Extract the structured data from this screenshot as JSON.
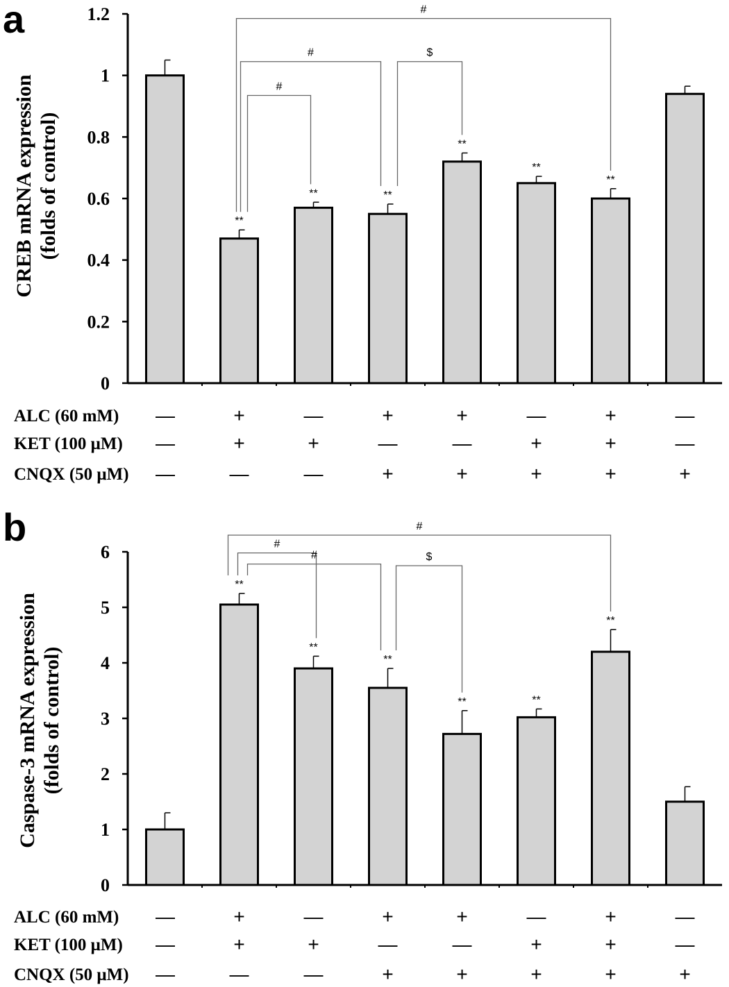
{
  "charts": {
    "a": {
      "letter": "a",
      "chart_data": {
        "type": "bar",
        "ylabel_line1": "CREB mRNA expression",
        "ylabel_line2": "(folds of control)",
        "ylim": [
          0,
          1.2
        ],
        "yticks": [
          0,
          0.2,
          0.4,
          0.6,
          0.8,
          1,
          1.2
        ],
        "ytick_labels": [
          "0",
          "0.2",
          "0.4",
          "0.6",
          "0.8",
          "1",
          "1.2"
        ],
        "values": [
          1.0,
          0.47,
          0.57,
          0.55,
          0.72,
          0.65,
          0.6,
          0.94
        ],
        "errors": [
          0.05,
          0.028,
          0.018,
          0.032,
          0.028,
          0.022,
          0.032,
          0.025
        ],
        "significance": [
          "",
          "**",
          "**",
          "**",
          "**",
          "**",
          "**",
          ""
        ],
        "comparisons": [
          {
            "from": 1,
            "to": 6,
            "label": "#",
            "level": 1.185
          },
          {
            "from": 1,
            "to": 3,
            "label": "#",
            "level": 1.045
          },
          {
            "from": 3,
            "to": 4,
            "label": "$",
            "level": 1.045
          },
          {
            "from": 1,
            "to": 2,
            "label": "#",
            "level": 0.935
          }
        ],
        "conditions": [
          {
            "label": "ALC (60 mM)",
            "marks": [
              "—",
              "+",
              "—",
              "+",
              "+",
              "—",
              "+",
              "—"
            ]
          },
          {
            "label": "KET (100 μM)",
            "marks": [
              "—",
              "+",
              "+",
              "—",
              "—",
              "+",
              "+",
              "—"
            ]
          },
          {
            "label": "CNQX (50 μM)",
            "marks": [
              "—",
              "—",
              "—",
              "+",
              "+",
              "+",
              "+",
              "+"
            ]
          }
        ]
      }
    },
    "b": {
      "letter": "b",
      "chart_data": {
        "type": "bar",
        "ylabel_line1": "Caspase-3 mRNA expression",
        "ylabel_line2": "(folds of control)",
        "ylim": [
          0,
          6
        ],
        "yticks": [
          0,
          1,
          2,
          3,
          4,
          5,
          6
        ],
        "ytick_labels": [
          "0",
          "1",
          "2",
          "3",
          "4",
          "5",
          "6"
        ],
        "values": [
          1.0,
          5.05,
          3.9,
          3.55,
          2.72,
          3.02,
          4.2,
          1.5
        ],
        "errors": [
          0.3,
          0.2,
          0.22,
          0.35,
          0.42,
          0.15,
          0.4,
          0.27
        ],
        "significance": [
          "",
          "**",
          "**",
          "**",
          "**",
          "**",
          "**",
          ""
        ],
        "comparisons": [
          {
            "from": 1,
            "to": 6,
            "label": "#",
            "level": 6.3
          },
          {
            "from": 1,
            "to": 2,
            "label": "#",
            "level": 5.98
          },
          {
            "from": 1,
            "to": 3,
            "label": "#",
            "level": 5.78
          },
          {
            "from": 3,
            "to": 4,
            "label": "$",
            "level": 5.75
          }
        ],
        "conditions": [
          {
            "label": "ALC (60 mM)",
            "marks": [
              "—",
              "+",
              "—",
              "+",
              "+",
              "—",
              "+",
              "—"
            ]
          },
          {
            "label": "KET (100 μM)",
            "marks": [
              "—",
              "+",
              "+",
              "—",
              "—",
              "+",
              "+",
              "—"
            ]
          },
          {
            "label": "CNQX (50 μM)",
            "marks": [
              "—",
              "—",
              "—",
              "+",
              "+",
              "+",
              "+",
              "+"
            ]
          }
        ]
      }
    }
  },
  "colors": {
    "bar_fill": "#d3d3d3",
    "stroke": "#000000",
    "bracket": "#666666"
  }
}
